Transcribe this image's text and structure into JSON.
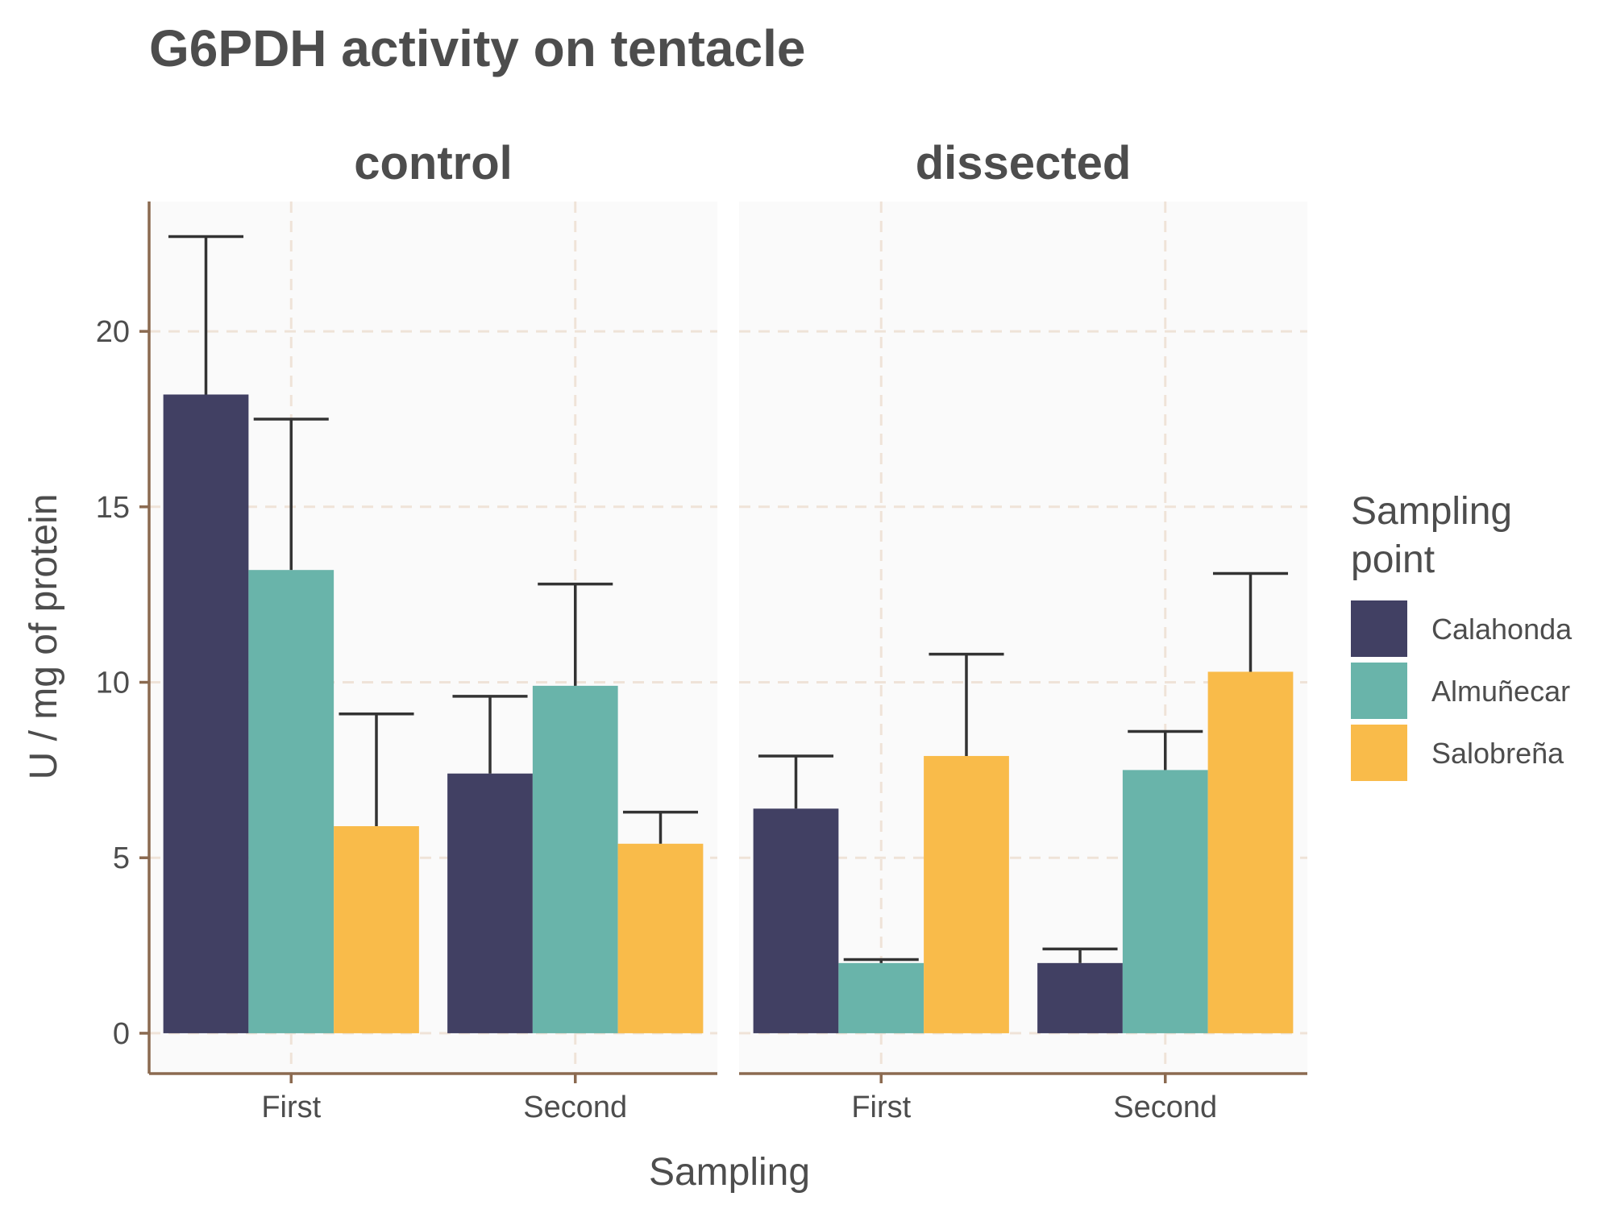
{
  "chart_data": {
    "type": "bar",
    "title": "G6PDH activity on tentacle",
    "xlabel": "Sampling",
    "ylabel": "U / mg  of protein",
    "ylim": [
      -1.15,
      23.7
    ],
    "yticks": [
      0,
      5,
      10,
      15,
      20
    ],
    "grid": true,
    "legend": {
      "title_lines": [
        "Sampling",
        "point"
      ],
      "position": "right"
    },
    "categories": [
      "First",
      "Second"
    ],
    "series_names": [
      "Calahonda",
      "Almuñecar",
      "Salobreña"
    ],
    "colors": {
      "Calahonda": "#414063",
      "Almuñecar": "#69b4aa",
      "Salobreña": "#f9bb4a",
      "panel_bg": "#fafafa",
      "grid": "#efe3d8",
      "axis_line": "#8b6a50",
      "error_bar": "#333333"
    },
    "panels": [
      {
        "name": "control",
        "series": [
          {
            "name": "Calahonda",
            "values": [
              18.2,
              7.4
            ],
            "errors": [
              22.7,
              9.6
            ]
          },
          {
            "name": "Almuñecar",
            "values": [
              13.2,
              9.9
            ],
            "errors": [
              17.5,
              12.8
            ]
          },
          {
            "name": "Salobreña",
            "values": [
              5.9,
              5.4
            ],
            "errors": [
              9.1,
              6.3
            ]
          }
        ]
      },
      {
        "name": "dissected",
        "series": [
          {
            "name": "Calahonda",
            "values": [
              6.4,
              2.0
            ],
            "errors": [
              7.9,
              2.4
            ]
          },
          {
            "name": "Almuñecar",
            "values": [
              2.0,
              7.5
            ],
            "errors": [
              2.1,
              8.6
            ]
          },
          {
            "name": "Salobreña",
            "values": [
              7.9,
              10.3
            ],
            "errors": [
              10.8,
              13.1
            ]
          }
        ]
      }
    ]
  }
}
